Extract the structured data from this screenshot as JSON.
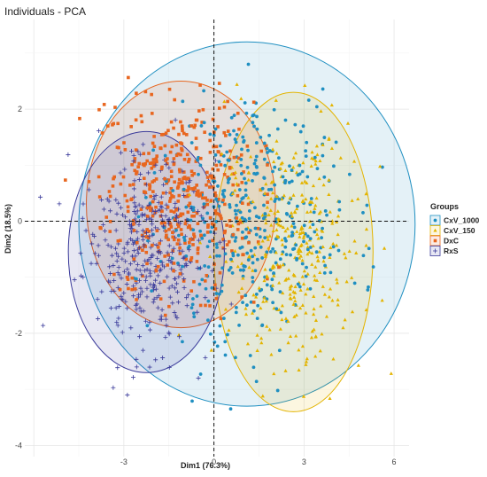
{
  "chart_data": {
    "type": "scatter",
    "title": "Individuals - PCA",
    "xlabel": "Dim1 (76.3%)",
    "ylabel": "Dim2 (18.5%)",
    "xlim": [
      -6.3,
      6.5
    ],
    "ylim": [
      -4.2,
      3.6
    ],
    "x_ticks": [
      -3,
      0,
      3,
      6
    ],
    "y_ticks": [
      -4,
      -2,
      0,
      2
    ],
    "grid": true,
    "legend": {
      "title": "Groups",
      "position": "right"
    },
    "series": [
      {
        "name": "CxV_1000",
        "color": "#1f8fc1",
        "marker": "circle",
        "ellipse": {
          "cx": 1.1,
          "cy": -0.05,
          "rx": 5.6,
          "ry": 3.25
        },
        "centroid": [
          1.1,
          -0.05
        ],
        "spread": [
          1.55,
          1.05
        ],
        "n": 420
      },
      {
        "name": "CxV_150",
        "color": "#e3b400",
        "marker": "triangle",
        "ellipse": {
          "cx": 2.65,
          "cy": -0.55,
          "rx": 2.65,
          "ry": 2.85
        },
        "centroid": [
          2.65,
          -0.45
        ],
        "spread": [
          1.15,
          1.05
        ],
        "n": 360
      },
      {
        "name": "DxC",
        "color": "#e8661f",
        "marker": "square",
        "ellipse": {
          "cx": -1.1,
          "cy": 0.3,
          "rx": 3.15,
          "ry": 2.2
        },
        "centroid": [
          -1.2,
          0.4
        ],
        "spread": [
          1.25,
          0.85
        ],
        "n": 450
      },
      {
        "name": "RxS",
        "color": "#3a3a9a",
        "marker": "plus",
        "ellipse": {
          "cx": -2.25,
          "cy": -0.55,
          "rx": 2.6,
          "ry": 2.15
        },
        "centroid": [
          -2.3,
          -0.55
        ],
        "spread": [
          1.0,
          0.85
        ],
        "n": 380
      }
    ]
  }
}
